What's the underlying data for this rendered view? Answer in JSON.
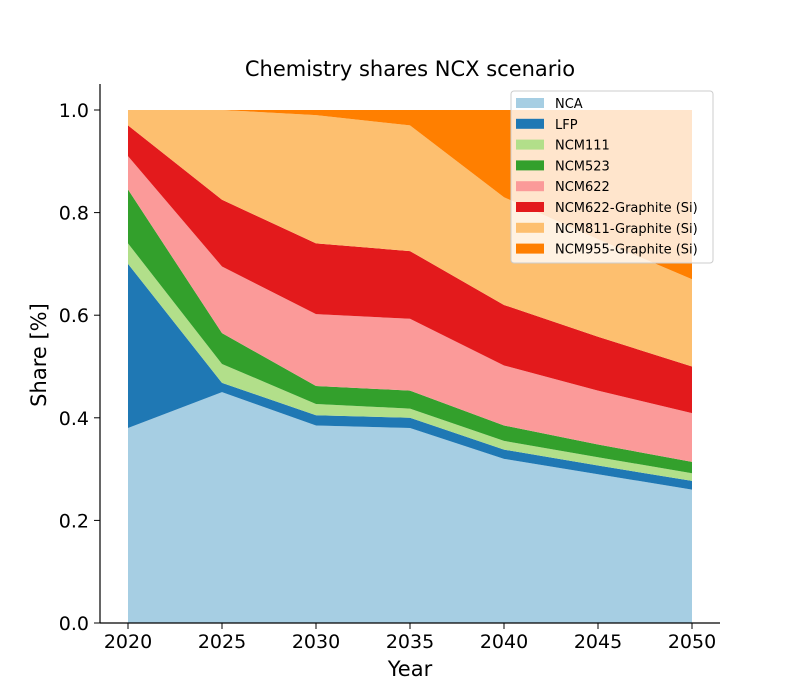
{
  "chart_data": {
    "type": "area",
    "stacked": true,
    "title": "Chemistry shares NCX scenario",
    "xlabel": "Year",
    "ylabel": "Share [%]",
    "xlim": [
      2020,
      2050
    ],
    "ylim": [
      0,
      1.05
    ],
    "x_ticks": [
      "2020",
      "2025",
      "2030",
      "2035",
      "2040",
      "2045",
      "2050"
    ],
    "y_ticks": [
      "0.0",
      "0.2",
      "0.4",
      "0.6",
      "0.8",
      "1.0"
    ],
    "grid": false,
    "legend_position": "top-right",
    "x": [
      2020,
      2025,
      2030,
      2035,
      2040,
      2045,
      2050
    ],
    "series": [
      {
        "name": "NCA",
        "color": "#a6cee3",
        "values": [
          0.38,
          0.45,
          0.385,
          0.38,
          0.32,
          0.29,
          0.26
        ]
      },
      {
        "name": "LFP",
        "color": "#1f78b4",
        "values": [
          0.32,
          0.018,
          0.02,
          0.02,
          0.018,
          0.017,
          0.017
        ]
      },
      {
        "name": "NCM111",
        "color": "#b2df8a",
        "values": [
          0.04,
          0.037,
          0.022,
          0.018,
          0.017,
          0.016,
          0.015
        ]
      },
      {
        "name": "NCM523",
        "color": "#33a02c",
        "values": [
          0.105,
          0.06,
          0.035,
          0.035,
          0.03,
          0.025,
          0.022
        ]
      },
      {
        "name": "NCM622",
        "color": "#fb9a99",
        "values": [
          0.065,
          0.13,
          0.14,
          0.14,
          0.117,
          0.105,
          0.095
        ]
      },
      {
        "name": "NCM622-Graphite (Si)",
        "color": "#e31a1c",
        "values": [
          0.06,
          0.13,
          0.138,
          0.132,
          0.118,
          0.105,
          0.091
        ]
      },
      {
        "name": "NCM811-Graphite (Si)",
        "color": "#fdbf6f",
        "values": [
          0.03,
          0.175,
          0.25,
          0.245,
          0.21,
          0.19,
          0.17
        ]
      },
      {
        "name": "NCM955-Graphite (Si)",
        "color": "#ff7f00",
        "values": [
          0.0,
          0.0,
          0.01,
          0.03,
          0.17,
          0.252,
          0.33
        ]
      }
    ]
  }
}
